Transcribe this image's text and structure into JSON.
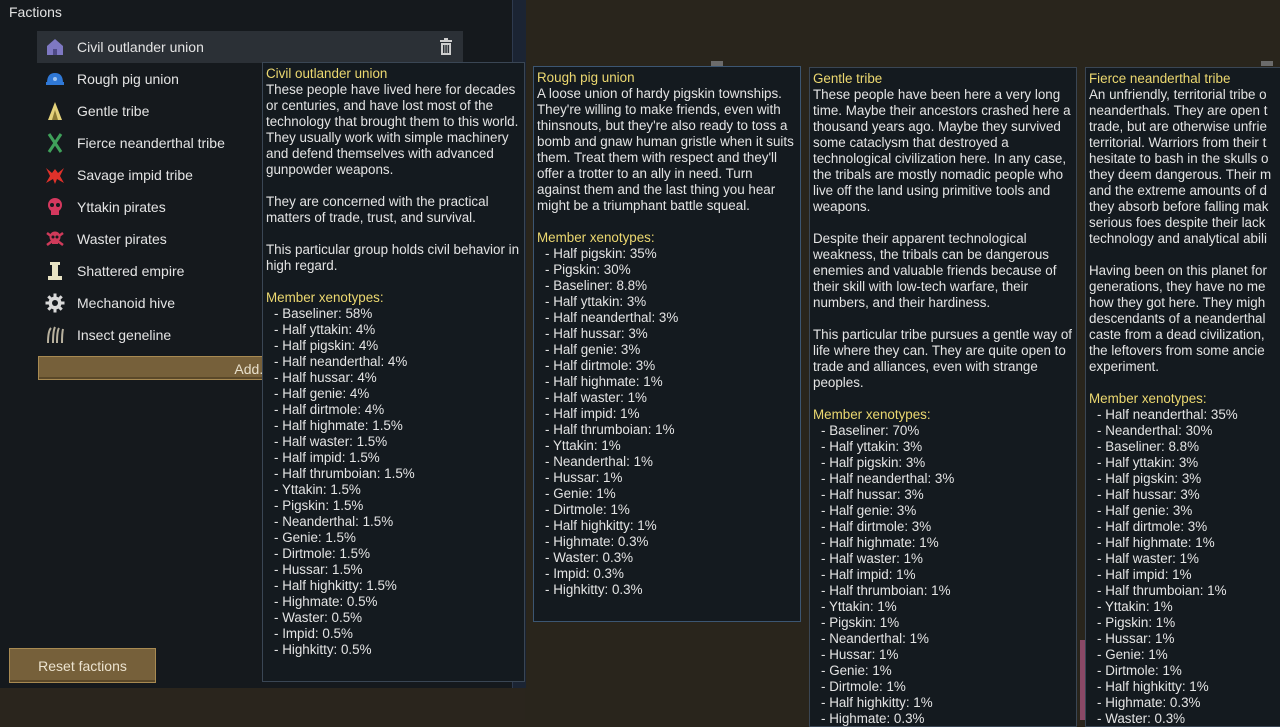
{
  "panel": {
    "title": "Factions"
  },
  "factions": [
    {
      "name": "Civil outlander union",
      "icon": "outlander-house-icon",
      "color": "#7e78c2"
    },
    {
      "name": "Rough pig union",
      "icon": "pig-helmet-icon",
      "color": "#2f78d6"
    },
    {
      "name": "Gentle tribe",
      "icon": "tribe-tent-icon",
      "color": "#e4d27a"
    },
    {
      "name": "Fierce neanderthal tribe",
      "icon": "neanderthal-icon",
      "color": "#3fa05a"
    },
    {
      "name": "Savage impid tribe",
      "icon": "impid-icon",
      "color": "#e0312a"
    },
    {
      "name": "Yttakin pirates",
      "icon": "skull-icon",
      "color": "#d4385e"
    },
    {
      "name": "Waster pirates",
      "icon": "skull-crossbones-icon",
      "color": "#cf3a5a"
    },
    {
      "name": "Shattered empire",
      "icon": "empire-pillar-icon",
      "color": "#e8e3c4"
    },
    {
      "name": "Mechanoid hive",
      "icon": "gear-icon",
      "color": "#d9d9d9"
    },
    {
      "name": "Insect geneline",
      "icon": "insect-claw-icon",
      "color": "#b8b19e"
    }
  ],
  "buttons": {
    "add": "Add...",
    "reset": "Reset factions"
  },
  "tooltips": [
    {
      "title": "Civil outlander union",
      "paragraphs": [
        "These people have lived here for decades or centuries, and have lost most of the technology that brought them to this world. They usually work with simple machinery and defend themselves with advanced gunpowder weapons.",
        "They are concerned with the practical matters of trade, trust, and survival.",
        "This particular group holds civil behavior in high regard."
      ],
      "xeno_heading": "Member xenotypes:",
      "xenotypes": [
        "Baseliner: 58%",
        "Half yttakin: 4%",
        "Half pigskin: 4%",
        "Half neanderthal: 4%",
        "Half hussar: 4%",
        "Half genie: 4%",
        "Half dirtmole: 4%",
        "Half highmate: 1.5%",
        "Half waster: 1.5%",
        "Half impid: 1.5%",
        "Half thrumboian: 1.5%",
        "Yttakin: 1.5%",
        "Pigskin: 1.5%",
        "Neanderthal: 1.5%",
        "Genie: 1.5%",
        "Dirtmole: 1.5%",
        "Hussar: 1.5%",
        "Half highkitty: 1.5%",
        "Highmate: 0.5%",
        "Waster: 0.5%",
        "Impid: 0.5%",
        "Highkitty: 0.5%"
      ]
    },
    {
      "title": "Rough pig union",
      "paragraphs": [
        "A loose union of hardy pigskin townships. They're willing to make friends, even with thinsnouts, but they're also ready to toss a bomb and gnaw human gristle when it suits them. Treat them with respect and they'll offer a trotter to an ally in need. Turn against them and the last thing you hear might be a triumphant battle squeal."
      ],
      "xeno_heading": "Member xenotypes:",
      "xenotypes": [
        "Half pigskin: 35%",
        "Pigskin: 30%",
        "Baseliner: 8.8%",
        "Half yttakin: 3%",
        "Half neanderthal: 3%",
        "Half hussar: 3%",
        "Half genie: 3%",
        "Half dirtmole: 3%",
        "Half highmate: 1%",
        "Half waster: 1%",
        "Half impid: 1%",
        "Half thrumboian: 1%",
        "Yttakin: 1%",
        "Neanderthal: 1%",
        "Hussar: 1%",
        "Genie: 1%",
        "Dirtmole: 1%",
        "Half highkitty: 1%",
        "Highmate: 0.3%",
        "Waster: 0.3%",
        "Impid: 0.3%",
        "Highkitty: 0.3%"
      ]
    },
    {
      "title": "Gentle tribe",
      "paragraphs": [
        "These people have been here a very long time. Maybe their ancestors crashed here a thousand years ago. Maybe they survived some cataclysm that destroyed a technological civilization here. In any case, the tribals are mostly nomadic people who live off the land using primitive tools and weapons.",
        "Despite their apparent technological weakness, the tribals can be dangerous enemies and valuable friends because of their skill with low-tech warfare, their numbers, and their hardiness.",
        "This particular tribe pursues a gentle way of life where they can. They are quite open to trade and alliances, even with strange peoples."
      ],
      "xeno_heading": "Member xenotypes:",
      "xenotypes": [
        "Baseliner: 70%",
        "Half yttakin: 3%",
        "Half pigskin: 3%",
        "Half neanderthal: 3%",
        "Half hussar: 3%",
        "Half genie: 3%",
        "Half dirtmole: 3%",
        "Half highmate: 1%",
        "Half waster: 1%",
        "Half impid: 1%",
        "Half thrumboian: 1%",
        "Yttakin: 1%",
        "Pigskin: 1%",
        "Neanderthal: 1%",
        "Hussar: 1%",
        "Genie: 1%",
        "Dirtmole: 1%",
        "Half highkitty: 1%",
        "Highmate: 0.3%"
      ]
    },
    {
      "title": "Fierce neanderthal tribe",
      "paragraphs": [
        "An unfriendly, territorial tribe o\nneanderthals. They are open t\ntrade, but are otherwise unfrie\nterritorial. Warriors from their t\nhesitate to bash in the skulls o\nthey deem dangerous. Their m\nand the extreme amounts of d\nthey absorb before falling mak\nserious foes despite their lack\ntechnology and analytical abili",
        "Having been on this planet for\ngenerations, they have no me\nhow they got here. They migh\ndescendants of a neanderthal\ncaste from a dead civilization,\nthe leftovers from some ancie\nexperiment."
      ],
      "xeno_heading": "Member xenotypes:",
      "xenotypes": [
        "Half neanderthal: 35%",
        "Neanderthal: 30%",
        "Baseliner: 8.8%",
        "Half yttakin: 3%",
        "Half pigskin: 3%",
        "Half hussar: 3%",
        "Half genie: 3%",
        "Half dirtmole: 3%",
        "Half highmate: 1%",
        "Half waster: 1%",
        "Half impid: 1%",
        "Half thrumboian: 1%",
        "Yttakin: 1%",
        "Pigskin: 1%",
        "Hussar: 1%",
        "Genie: 1%",
        "Dirtmole: 1%",
        "Half highkitty: 1%",
        "Highmate: 0.3%",
        "Waster: 0.3%"
      ]
    }
  ]
}
